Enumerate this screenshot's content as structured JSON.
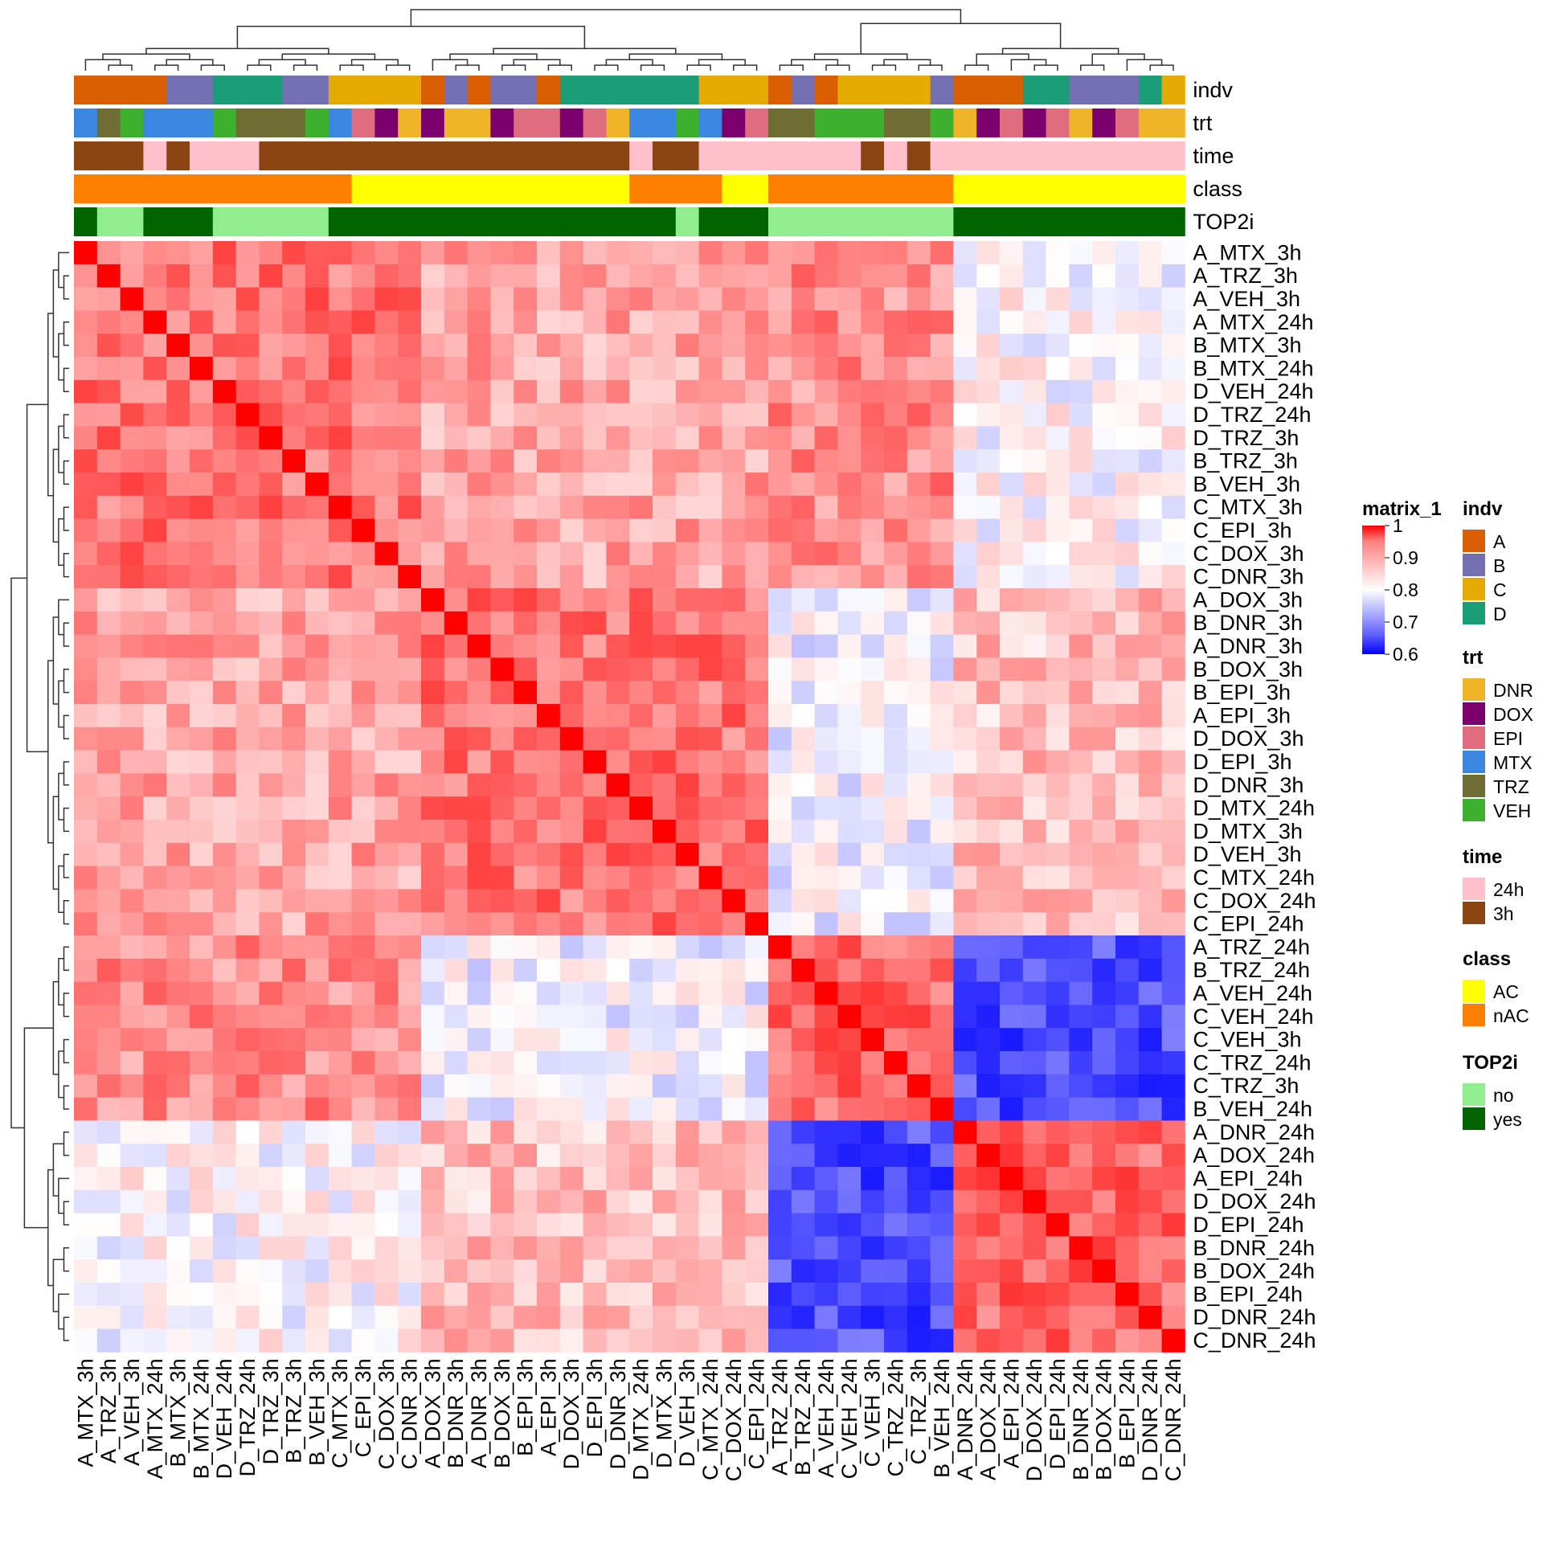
{
  "chart_data": {
    "type": "heatmap",
    "title": "",
    "samples": [
      "A_MTX_3h",
      "A_TRZ_3h",
      "A_VEH_3h",
      "A_MTX_24h",
      "B_MTX_3h",
      "B_MTX_24h",
      "D_VEH_24h",
      "D_TRZ_24h",
      "D_TRZ_3h",
      "B_TRZ_3h",
      "B_VEH_3h",
      "C_MTX_3h",
      "C_EPI_3h",
      "C_DOX_3h",
      "C_DNR_3h",
      "A_DOX_3h",
      "B_DNR_3h",
      "A_DNR_3h",
      "B_DOX_3h",
      "B_EPI_3h",
      "A_EPI_3h",
      "D_DOX_3h",
      "D_EPI_3h",
      "D_DNR_3h",
      "D_MTX_24h",
      "D_MTX_3h",
      "D_VEH_3h",
      "C_MTX_24h",
      "C_DOX_24h",
      "C_EPI_24h",
      "A_TRZ_24h",
      "B_TRZ_24h",
      "A_VEH_24h",
      "C_VEH_24h",
      "C_VEH_3h",
      "C_TRZ_24h",
      "C_TRZ_3h",
      "B_VEH_24h",
      "A_DNR_24h",
      "A_DOX_24h",
      "A_EPI_24h",
      "D_DOX_24h",
      "D_EPI_24h",
      "B_DNR_24h",
      "B_DOX_24h",
      "B_EPI_24h",
      "D_DNR_24h",
      "C_DNR_24h"
    ],
    "group_boundaries": [
      15,
      30,
      38
    ],
    "block_values": [
      [
        0.91,
        0.87,
        0.89,
        0.8
      ],
      [
        0.87,
        0.91,
        0.79,
        0.85
      ],
      [
        0.89,
        0.79,
        0.92,
        0.66
      ],
      [
        0.8,
        0.85,
        0.66,
        0.92
      ]
    ],
    "color_scale": {
      "legend_title": "matrix_1",
      "min": 0.6,
      "max": 1,
      "ticks": [
        "1",
        "0.9",
        "0.8",
        "0.7",
        "0.6"
      ],
      "low_color": "#0000ff",
      "mid_color": "#ffffff",
      "high_color": "#ff0000"
    },
    "annotations": [
      {
        "name": "indv",
        "values": [
          "A",
          "A",
          "A",
          "A",
          "B",
          "B",
          "D",
          "D",
          "D",
          "B",
          "B",
          "C",
          "C",
          "C",
          "C",
          "A",
          "B",
          "A",
          "B",
          "B",
          "A",
          "D",
          "D",
          "D",
          "D",
          "D",
          "D",
          "C",
          "C",
          "C",
          "A",
          "B",
          "A",
          "C",
          "C",
          "C",
          "C",
          "B",
          "A",
          "A",
          "A",
          "D",
          "D",
          "B",
          "B",
          "B",
          "D",
          "C"
        ],
        "legend": [
          {
            "label": "A",
            "color": "#D95F02"
          },
          {
            "label": "B",
            "color": "#7570B3"
          },
          {
            "label": "C",
            "color": "#E6AB02"
          },
          {
            "label": "D",
            "color": "#1B9E77"
          }
        ]
      },
      {
        "name": "trt",
        "values": [
          "MTX",
          "TRZ",
          "VEH",
          "MTX",
          "MTX",
          "MTX",
          "VEH",
          "TRZ",
          "TRZ",
          "TRZ",
          "VEH",
          "MTX",
          "EPI",
          "DOX",
          "DNR",
          "DOX",
          "DNR",
          "DNR",
          "DOX",
          "EPI",
          "EPI",
          "DOX",
          "EPI",
          "DNR",
          "MTX",
          "MTX",
          "VEH",
          "MTX",
          "DOX",
          "EPI",
          "TRZ",
          "TRZ",
          "VEH",
          "VEH",
          "VEH",
          "TRZ",
          "TRZ",
          "VEH",
          "DNR",
          "DOX",
          "EPI",
          "DOX",
          "EPI",
          "DNR",
          "DOX",
          "EPI",
          "DNR",
          "DNR"
        ],
        "legend": [
          {
            "label": "DNR",
            "color": "#F0B429"
          },
          {
            "label": "DOX",
            "color": "#7B006E"
          },
          {
            "label": "EPI",
            "color": "#E06C7F"
          },
          {
            "label": "MTX",
            "color": "#3A86E0"
          },
          {
            "label": "TRZ",
            "color": "#6E6E34"
          },
          {
            "label": "VEH",
            "color": "#3DB12E"
          }
        ]
      },
      {
        "name": "time",
        "values": [
          "3h",
          "3h",
          "3h",
          "24h",
          "3h",
          "24h",
          "24h",
          "24h",
          "3h",
          "3h",
          "3h",
          "3h",
          "3h",
          "3h",
          "3h",
          "3h",
          "3h",
          "3h",
          "3h",
          "3h",
          "3h",
          "3h",
          "3h",
          "3h",
          "24h",
          "3h",
          "3h",
          "24h",
          "24h",
          "24h",
          "24h",
          "24h",
          "24h",
          "24h",
          "3h",
          "24h",
          "3h",
          "24h",
          "24h",
          "24h",
          "24h",
          "24h",
          "24h",
          "24h",
          "24h",
          "24h",
          "24h",
          "24h"
        ],
        "legend": [
          {
            "label": "24h",
            "color": "#FFC0CB"
          },
          {
            "label": "3h",
            "color": "#8B4513"
          }
        ]
      },
      {
        "name": "class",
        "values": [
          "nAC",
          "nAC",
          "nAC",
          "nAC",
          "nAC",
          "nAC",
          "nAC",
          "nAC",
          "nAC",
          "nAC",
          "nAC",
          "nAC",
          "AC",
          "AC",
          "AC",
          "AC",
          "AC",
          "AC",
          "AC",
          "AC",
          "AC",
          "AC",
          "AC",
          "AC",
          "nAC",
          "nAC",
          "nAC",
          "nAC",
          "AC",
          "AC",
          "nAC",
          "nAC",
          "nAC",
          "nAC",
          "nAC",
          "nAC",
          "nAC",
          "nAC",
          "AC",
          "AC",
          "AC",
          "AC",
          "AC",
          "AC",
          "AC",
          "AC",
          "AC",
          "AC"
        ],
        "legend": [
          {
            "label": "AC",
            "color": "#FFFF00"
          },
          {
            "label": "nAC",
            "color": "#FF7F00"
          }
        ]
      },
      {
        "name": "TOP2i",
        "values": [
          "yes",
          "no",
          "no",
          "yes",
          "yes",
          "yes",
          "no",
          "no",
          "no",
          "no",
          "no",
          "yes",
          "yes",
          "yes",
          "yes",
          "yes",
          "yes",
          "yes",
          "yes",
          "yes",
          "yes",
          "yes",
          "yes",
          "yes",
          "yes",
          "yes",
          "no",
          "yes",
          "yes",
          "yes",
          "no",
          "no",
          "no",
          "no",
          "no",
          "no",
          "no",
          "no",
          "yes",
          "yes",
          "yes",
          "yes",
          "yes",
          "yes",
          "yes",
          "yes",
          "yes",
          "yes"
        ],
        "legend": [
          {
            "label": "no",
            "color": "#90EE90"
          },
          {
            "label": "yes",
            "color": "#006400"
          }
        ]
      }
    ]
  }
}
